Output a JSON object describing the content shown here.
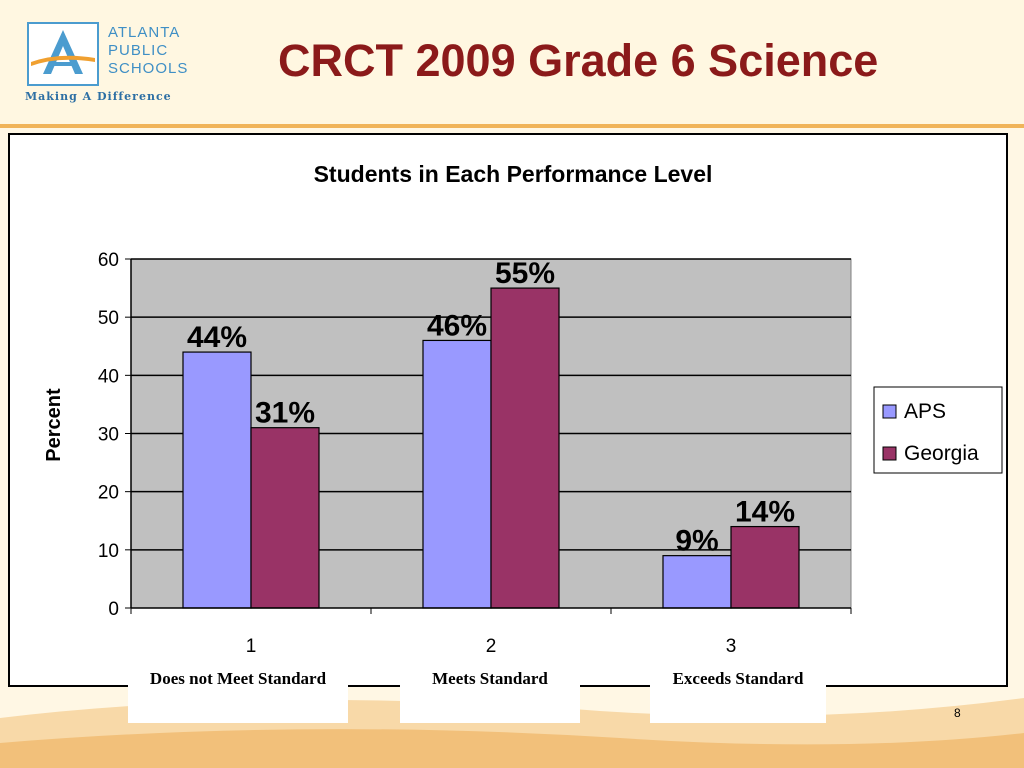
{
  "slide": {
    "title": "CRCT 2009 Grade 6 Science",
    "page_number": "8"
  },
  "logo": {
    "lines": [
      "ATLANTA",
      "PUBLIC",
      "SCHOOLS"
    ],
    "tagline": "Making A Difference"
  },
  "category_descriptions": [
    "Does not Meet Standard",
    "Meets Standard",
    "Exceeds Standard"
  ],
  "chart_data": {
    "type": "bar",
    "title": "Students in Each Performance Level",
    "xlabel": "",
    "ylabel": "Percent",
    "categories": [
      "1",
      "2",
      "3"
    ],
    "series": [
      {
        "name": "APS",
        "values": [
          44,
          46,
          9
        ],
        "labels": [
          "44%",
          "46%",
          "9%"
        ],
        "color": "#9999ff"
      },
      {
        "name": "Georgia",
        "values": [
          31,
          55,
          14
        ],
        "labels": [
          "31%",
          "55%",
          "14%"
        ],
        "color": "#993366"
      }
    ],
    "ylim": [
      0,
      60
    ],
    "yticks": [
      0,
      10,
      20,
      30,
      40,
      50,
      60
    ],
    "grid": true,
    "legend": "right",
    "plot_background": "#c0c0c0"
  }
}
